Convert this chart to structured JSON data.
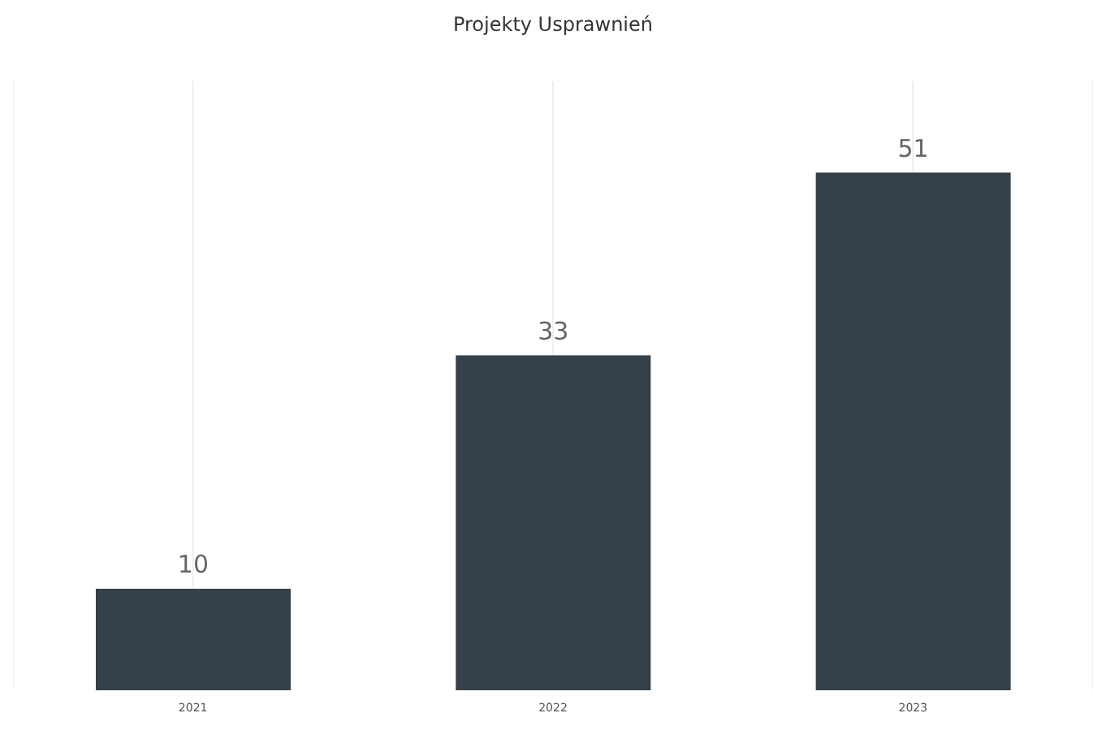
{
  "chart_data": {
    "type": "bar",
    "title": "Projekty Usprawnień",
    "categories": [
      "2021",
      "2022",
      "2023"
    ],
    "values": [
      10,
      33,
      51
    ],
    "color": "#36404a",
    "data_labels": true,
    "ylim": [
      0,
      60
    ],
    "tick_labels": "x",
    "grid": "x"
  }
}
